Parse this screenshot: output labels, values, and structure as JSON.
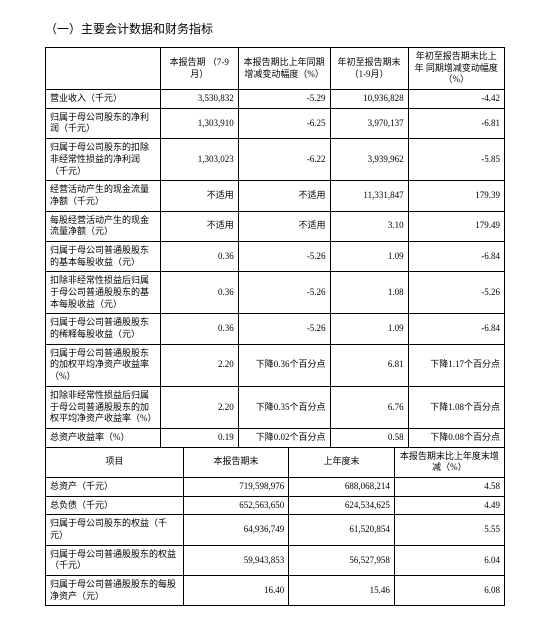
{
  "heading": "（一）主要会计数据和财务指标",
  "table1": {
    "head": [
      "",
      "本报告期\n（7-9月）",
      "本报告期比上年同期\n增减变动幅度（%）",
      "年初至报告期末\n（1-9月）",
      "年初至报告期末比上年\n同期增减变动幅度（%）"
    ],
    "rows": [
      [
        "营业收入（千元）",
        "3,530,832",
        "-5.29",
        "10,936,828",
        "-4.42"
      ],
      [
        "归属于母公司股东的净利润（千元）",
        "1,303,910",
        "-6.25",
        "3,970,137",
        "-6.81"
      ],
      [
        "归属于母公司股东的扣除非经常性损益的净利润（千元）",
        "1,303,023",
        "-6.22",
        "3,939,962",
        "-5.85"
      ],
      [
        "经营活动产生的现金流量净额（千元）",
        "不适用",
        "不适用",
        "11,331,847",
        "179.39"
      ],
      [
        "每股经营活动产生的现金流量净额（元）",
        "不适用",
        "不适用",
        "3.10",
        "179.49"
      ],
      [
        "归属于母公司普通股股东的基本每股收益（元）",
        "0.36",
        "-5.26",
        "1.09",
        "-6.84"
      ],
      [
        "扣除非经常性损益后归属于母公司普通股股东的基本每股收益（元）",
        "0.36",
        "-5.26",
        "1.08",
        "-5.26"
      ],
      [
        "归属于母公司普通股股东的稀释每股收益（元）",
        "0.36",
        "-5.26",
        "1.09",
        "-6.84"
      ],
      [
        "归属于母公司普通股股东的加权平均净资产收益率（%）",
        "2.20",
        "下降0.36个百分点",
        "6.81",
        "下降1.17个百分点"
      ],
      [
        "扣除非经常性损益后归属于母公司普通股股东的加权平均净资产收益率（%）",
        "2.20",
        "下降0.35个百分点",
        "6.76",
        "下降1.08个百分点"
      ],
      [
        "总资产收益率（%）",
        "0.19",
        "下降0.02个百分点",
        "0.58",
        "下降0.08个百分点"
      ]
    ]
  },
  "table2": {
    "head": [
      "项目",
      "本报告期末",
      "上年度末",
      "本报告期末比上年度末增减（%）"
    ],
    "rows": [
      [
        "总资产（千元）",
        "719,598,976",
        "688,068,214",
        "4.58"
      ],
      [
        "总负债（千元）",
        "652,563,650",
        "624,534,625",
        "4.49"
      ],
      [
        "归属于母公司股东的权益（千元）",
        "64,936,749",
        "61,520,854",
        "5.55"
      ],
      [
        "归属于母公司普通股股东的权益（千元）",
        "59,943,853",
        "56,527,958",
        "6.04"
      ],
      [
        "归属于母公司普通股股东的每股净资产（元）",
        "16.40",
        "15.46",
        "6.08"
      ]
    ]
  }
}
